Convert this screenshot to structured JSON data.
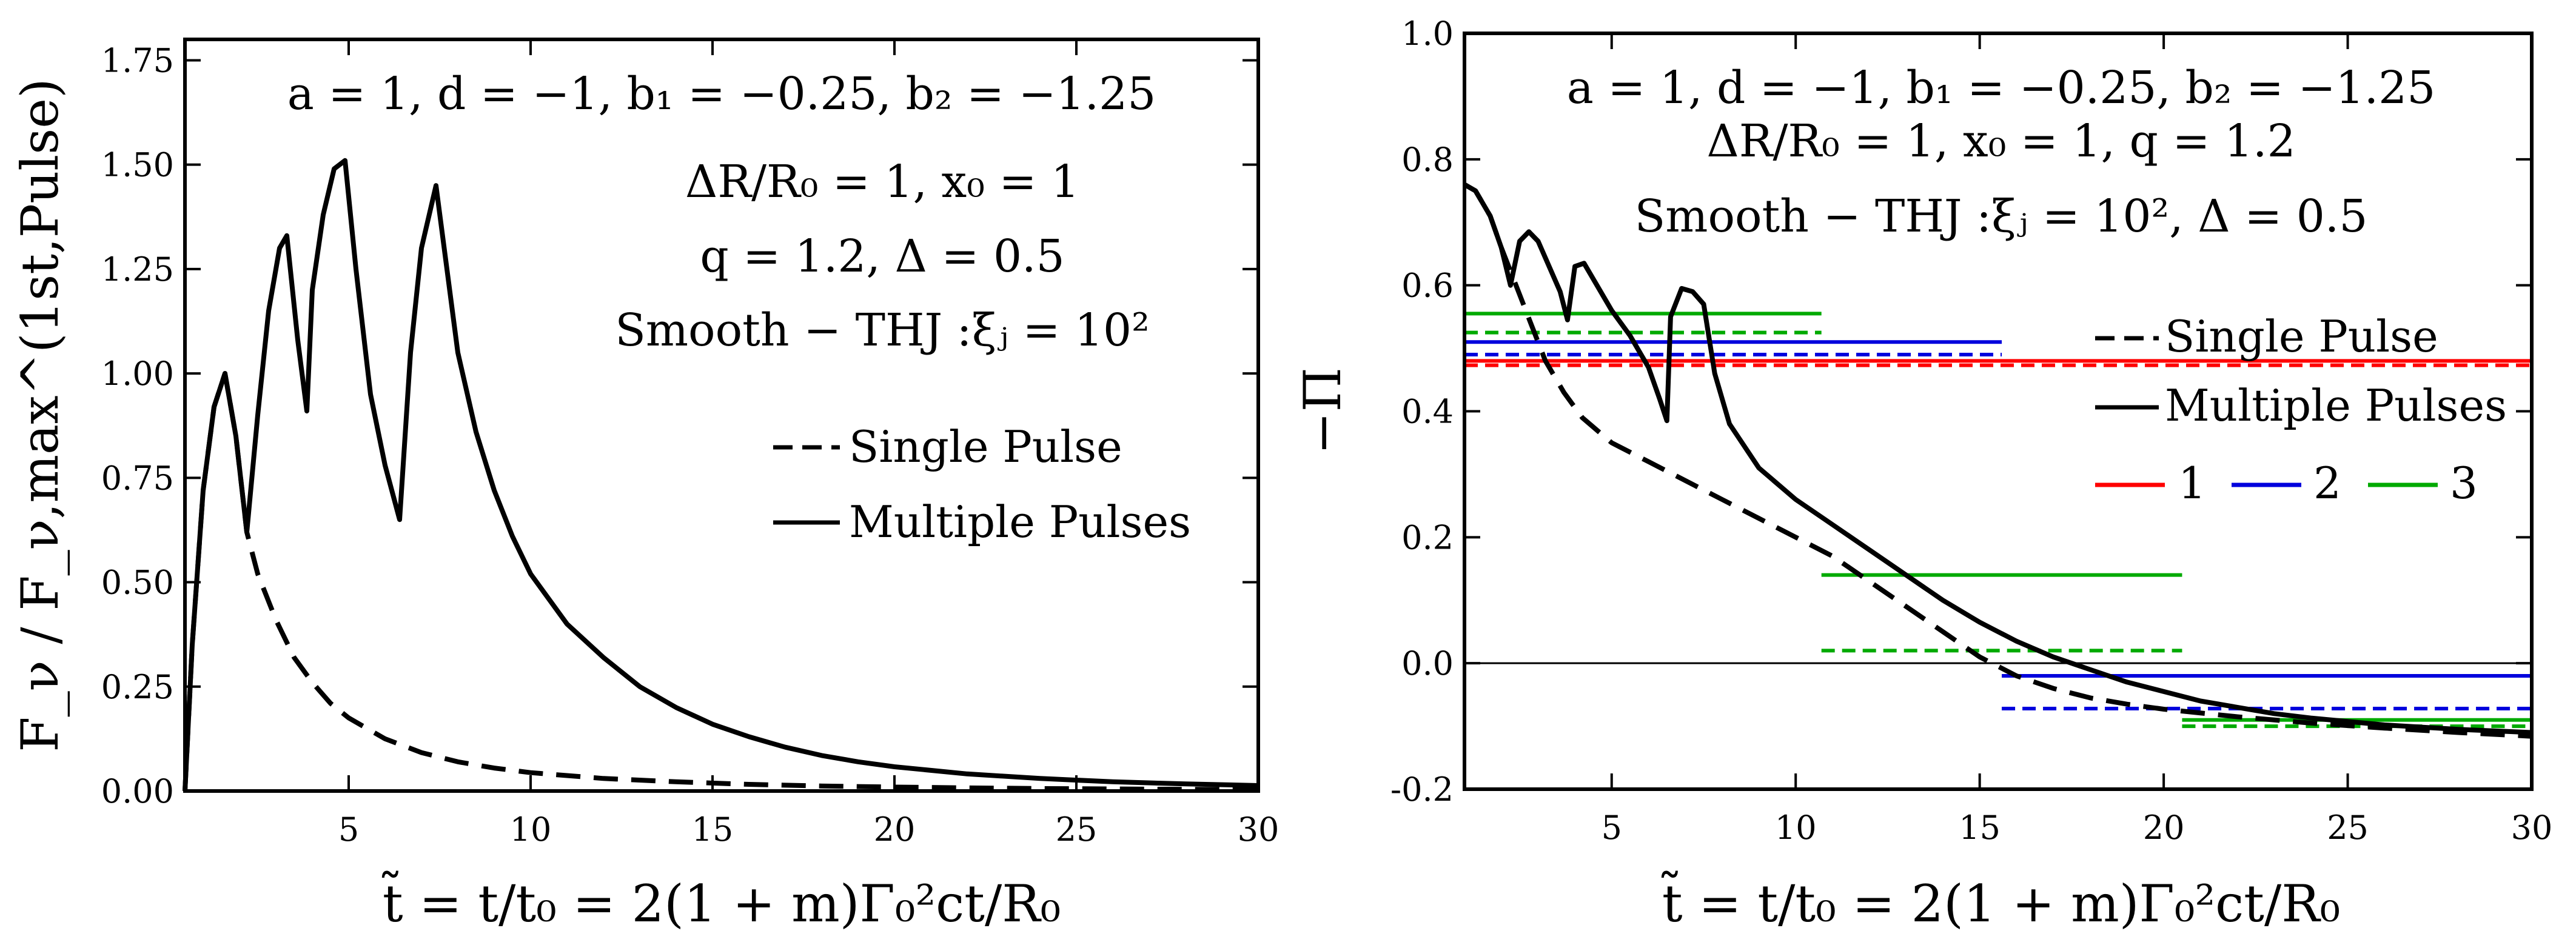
{
  "chart_data": [
    {
      "type": "line",
      "id": "left",
      "xlim": [
        0.5,
        30
      ],
      "ylim": [
        0,
        1.8
      ],
      "x_ticks": [
        5,
        10,
        15,
        20,
        25,
        30
      ],
      "x_tick_labels": [
        "5",
        "10",
        "15",
        "20",
        "25",
        "30"
      ],
      "y_ticks": [
        0,
        0.25,
        0.5,
        0.75,
        1.0,
        1.25,
        1.5,
        1.75
      ],
      "y_tick_labels": [
        "0.00",
        "0.25",
        "0.50",
        "0.75",
        "1.00",
        "1.25",
        "1.50",
        "1.75"
      ],
      "xlabel": "t̃ = t/t₀ = 2(1 + m)Γ₀²ct/R₀",
      "ylabel": "F_ν / F_ν,max^(1st,Pulse)",
      "annotations": [
        "a = 1,  d = −1,  b₁ = −0.25,  b₂ = −1.25",
        "ΔR/R₀ = 1,  x₀ = 1",
        "q = 1.2,  Δ = 0.5",
        "Smooth − THJ :ξⱼ = 10²"
      ],
      "legend": {
        "position": "center-right",
        "entries": [
          "Single Pulse",
          "Multiple Pulses"
        ]
      },
      "series": [
        {
          "name": "Single Pulse",
          "style": "dashed",
          "color": "#000000",
          "points": [
            [
              0.5,
              0
            ],
            [
              0.7,
              0.35
            ],
            [
              1.0,
              0.72
            ],
            [
              1.3,
              0.92
            ],
            [
              1.6,
              1.0
            ],
            [
              1.9,
              0.85
            ],
            [
              2.2,
              0.62
            ],
            [
              2.5,
              0.52
            ],
            [
              3,
              0.41
            ],
            [
              3.5,
              0.32
            ],
            [
              4,
              0.26
            ],
            [
              4.5,
              0.21
            ],
            [
              5,
              0.175
            ],
            [
              6,
              0.125
            ],
            [
              7,
              0.092
            ],
            [
              8,
              0.07
            ],
            [
              9,
              0.055
            ],
            [
              10,
              0.044
            ],
            [
              12,
              0.03
            ],
            [
              14,
              0.022
            ],
            [
              16,
              0.016
            ],
            [
              18,
              0.012
            ],
            [
              20,
              0.0095
            ],
            [
              22,
              0.0075
            ],
            [
              24,
              0.006
            ],
            [
              26,
              0.005
            ],
            [
              28,
              0.004
            ],
            [
              30,
              0.0035
            ]
          ]
        },
        {
          "name": "Multiple Pulses",
          "style": "solid",
          "color": "#000000",
          "points": [
            [
              0.5,
              0
            ],
            [
              0.7,
              0.35
            ],
            [
              1.0,
              0.72
            ],
            [
              1.3,
              0.92
            ],
            [
              1.6,
              1.0
            ],
            [
              1.9,
              0.85
            ],
            [
              2.2,
              0.62
            ],
            [
              2.5,
              0.9
            ],
            [
              2.8,
              1.15
            ],
            [
              3.1,
              1.3
            ],
            [
              3.3,
              1.33
            ],
            [
              3.6,
              1.08
            ],
            [
              3.85,
              0.91
            ],
            [
              4.0,
              1.2
            ],
            [
              4.3,
              1.38
            ],
            [
              4.6,
              1.49
            ],
            [
              4.9,
              1.51
            ],
            [
              5.2,
              1.25
            ],
            [
              5.6,
              0.95
            ],
            [
              6.0,
              0.78
            ],
            [
              6.4,
              0.65
            ],
            [
              6.7,
              1.05
            ],
            [
              7.0,
              1.3
            ],
            [
              7.4,
              1.45
            ],
            [
              7.7,
              1.25
            ],
            [
              8,
              1.05
            ],
            [
              8.5,
              0.86
            ],
            [
              9,
              0.72
            ],
            [
              9.5,
              0.61
            ],
            [
              10,
              0.52
            ],
            [
              11,
              0.4
            ],
            [
              12,
              0.32
            ],
            [
              13,
              0.25
            ],
            [
              14,
              0.2
            ],
            [
              15,
              0.16
            ],
            [
              16,
              0.13
            ],
            [
              17,
              0.105
            ],
            [
              18,
              0.085
            ],
            [
              19,
              0.07
            ],
            [
              20,
              0.058
            ],
            [
              22,
              0.041
            ],
            [
              24,
              0.03
            ],
            [
              26,
              0.022
            ],
            [
              28,
              0.017
            ],
            [
              30,
              0.013
            ]
          ]
        }
      ]
    },
    {
      "type": "line",
      "id": "right",
      "xlim": [
        1,
        30
      ],
      "ylim": [
        -0.2,
        1.0
      ],
      "x_ticks": [
        5,
        10,
        15,
        20,
        25,
        30
      ],
      "x_tick_labels": [
        "5",
        "10",
        "15",
        "20",
        "25",
        "30"
      ],
      "y_ticks": [
        -0.2,
        0.0,
        0.2,
        0.4,
        0.6,
        0.8,
        1.0
      ],
      "y_tick_labels": [
        "-0.2",
        "0.0",
        "0.2",
        "0.4",
        "0.6",
        "0.8",
        "1.0"
      ],
      "xlabel": "t̃ = t/t₀ = 2(1 + m)Γ₀²ct/R₀",
      "ylabel": "−Π",
      "annotations": [
        "a = 1,  d = −1,  b₁ = −0.25,  b₂ = −1.25",
        "ΔR/R₀ = 1,  x₀ = 1,  q = 1.2",
        "Smooth − THJ :ξⱼ = 10²,  Δ = 0.5"
      ],
      "legend": {
        "position": "center-right",
        "entries": [
          "Single Pulse",
          "Multiple Pulses"
        ],
        "segment_entries": [
          {
            "label": "1",
            "color": "#ff0000"
          },
          {
            "label": "2",
            "color": "#0000dd"
          },
          {
            "label": "3",
            "color": "#00aa00"
          }
        ]
      },
      "zero_line": 0,
      "series": [
        {
          "name": "Single Pulse",
          "style": "dashed",
          "color": "#000000",
          "points": [
            [
              1,
              0.76
            ],
            [
              1.3,
              0.75
            ],
            [
              1.7,
              0.71
            ],
            [
              2.0,
              0.66
            ],
            [
              2.4,
              0.6
            ],
            [
              2.8,
              0.54
            ],
            [
              3.2,
              0.48
            ],
            [
              3.7,
              0.43
            ],
            [
              4.2,
              0.39
            ],
            [
              5,
              0.35
            ],
            [
              6,
              0.32
            ],
            [
              7,
              0.29
            ],
            [
              8,
              0.26
            ],
            [
              9,
              0.23
            ],
            [
              10,
              0.2
            ],
            [
              11,
              0.17
            ],
            [
              12,
              0.13
            ],
            [
              13,
              0.09
            ],
            [
              14,
              0.05
            ],
            [
              15,
              0.01
            ],
            [
              16,
              -0.02
            ],
            [
              17,
              -0.04
            ],
            [
              18,
              -0.055
            ],
            [
              19,
              -0.065
            ],
            [
              20,
              -0.073
            ],
            [
              22,
              -0.085
            ],
            [
              24,
              -0.095
            ],
            [
              26,
              -0.103
            ],
            [
              28,
              -0.11
            ],
            [
              30,
              -0.116
            ]
          ]
        },
        {
          "name": "Multiple Pulses",
          "style": "solid",
          "color": "#000000",
          "points": [
            [
              1,
              0.76
            ],
            [
              1.3,
              0.75
            ],
            [
              1.7,
              0.71
            ],
            [
              2.0,
              0.66
            ],
            [
              2.25,
              0.6
            ],
            [
              2.5,
              0.67
            ],
            [
              2.75,
              0.685
            ],
            [
              3.0,
              0.67
            ],
            [
              3.3,
              0.63
            ],
            [
              3.6,
              0.59
            ],
            [
              3.8,
              0.545
            ],
            [
              4.0,
              0.63
            ],
            [
              4.25,
              0.635
            ],
            [
              4.6,
              0.6
            ],
            [
              5,
              0.56
            ],
            [
              5.5,
              0.52
            ],
            [
              6,
              0.47
            ],
            [
              6.3,
              0.42
            ],
            [
              6.5,
              0.385
            ],
            [
              6.6,
              0.55
            ],
            [
              6.9,
              0.595
            ],
            [
              7.2,
              0.59
            ],
            [
              7.5,
              0.57
            ],
            [
              7.8,
              0.46
            ],
            [
              8.2,
              0.38
            ],
            [
              9,
              0.31
            ],
            [
              10,
              0.26
            ],
            [
              11,
              0.22
            ],
            [
              12,
              0.18
            ],
            [
              13,
              0.14
            ],
            [
              14,
              0.1
            ],
            [
              15,
              0.065
            ],
            [
              16,
              0.035
            ],
            [
              17,
              0.01
            ],
            [
              18,
              -0.01
            ],
            [
              19,
              -0.03
            ],
            [
              20,
              -0.045
            ],
            [
              21,
              -0.06
            ],
            [
              22,
              -0.07
            ],
            [
              23,
              -0.08
            ],
            [
              24,
              -0.087
            ],
            [
              26,
              -0.098
            ],
            [
              28,
              -0.105
            ],
            [
              30,
              -0.11
            ]
          ]
        }
      ],
      "segments": [
        {
          "color": "#ff0000",
          "style": "solid",
          "x": [
            1,
            30
          ],
          "y": 0.48
        },
        {
          "color": "#ff0000",
          "style": "dashed",
          "x": [
            1,
            30
          ],
          "y": 0.473
        },
        {
          "color": "#0000dd",
          "style": "solid",
          "x": [
            1,
            15.6
          ],
          "y": 0.51
        },
        {
          "color": "#0000dd",
          "style": "dashed",
          "x": [
            1,
            15.6
          ],
          "y": 0.49
        },
        {
          "color": "#00aa00",
          "style": "solid",
          "x": [
            1,
            10.7
          ],
          "y": 0.555
        },
        {
          "color": "#00aa00",
          "style": "dashed",
          "x": [
            1,
            10.7
          ],
          "y": 0.525
        },
        {
          "color": "#00aa00",
          "style": "solid",
          "x": [
            10.7,
            20.5
          ],
          "y": 0.14
        },
        {
          "color": "#00aa00",
          "style": "dashed",
          "x": [
            10.7,
            20.5
          ],
          "y": 0.02
        },
        {
          "color": "#0000dd",
          "style": "solid",
          "x": [
            15.6,
            30
          ],
          "y": -0.02
        },
        {
          "color": "#0000dd",
          "style": "dashed",
          "x": [
            15.6,
            30
          ],
          "y": -0.072
        },
        {
          "color": "#00aa00",
          "style": "solid",
          "x": [
            20.5,
            30
          ],
          "y": -0.09
        },
        {
          "color": "#00aa00",
          "style": "dashed",
          "x": [
            20.5,
            30
          ],
          "y": -0.1
        }
      ]
    }
  ]
}
